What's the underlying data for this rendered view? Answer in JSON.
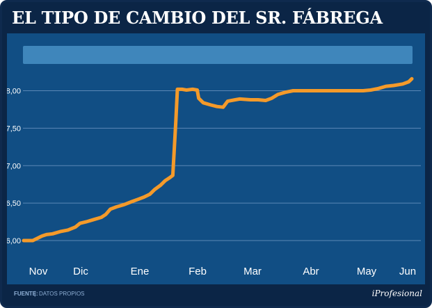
{
  "title": "EL TIPO DE CAMBIO DEL SR. FÁBREGA",
  "footer": {
    "source_label": "FUENTE:",
    "source_value": "DATOS PROPIOS",
    "brand": "iProfesional"
  },
  "colors": {
    "frame": "#0b2546",
    "plot_background": "#114e84",
    "banner": "#3f86bb",
    "line": "#f49a2a",
    "gridline": "#5b88b6"
  },
  "chart_data": {
    "type": "line",
    "title": "",
    "xlabel": "",
    "ylabel": "",
    "ylim": [
      6.0,
      8.2
    ],
    "yticks": [
      "6,00",
      "6,50",
      "7,00",
      "7,50",
      "8,00"
    ],
    "ytick_values": [
      6.0,
      6.5,
      7.0,
      7.5,
      8.0
    ],
    "month_labels": [
      "Nov",
      "Dic",
      "Ene",
      "Feb",
      "Mar",
      "Abr",
      "May",
      "Jun"
    ],
    "grid": true,
    "legend": "none",
    "series": [
      {
        "points": [
          [
            "2009-10-25",
            6.0
          ],
          [
            "2009-10-31",
            6.0
          ],
          [
            "2009-11-03",
            6.03
          ],
          [
            "2009-11-06",
            6.06
          ],
          [
            "2009-11-09",
            6.08
          ],
          [
            "2009-11-13",
            6.09
          ],
          [
            "2009-11-18",
            6.12
          ],
          [
            "2009-11-23",
            6.14
          ],
          [
            "2009-11-28",
            6.18
          ],
          [
            "2009-12-01",
            6.23
          ],
          [
            "2009-12-05",
            6.25
          ],
          [
            "2009-12-10",
            6.28
          ],
          [
            "2009-12-15",
            6.31
          ],
          [
            "2009-12-18",
            6.35
          ],
          [
            "2009-12-21",
            6.42
          ],
          [
            "2009-12-25",
            6.45
          ],
          [
            "2009-12-30",
            6.48
          ],
          [
            "2010-01-04",
            6.52
          ],
          [
            "2010-01-08",
            6.55
          ],
          [
            "2010-01-12",
            6.58
          ],
          [
            "2010-01-16",
            6.62
          ],
          [
            "2010-01-19",
            6.68
          ],
          [
            "2010-01-23",
            6.74
          ],
          [
            "2010-01-26",
            6.8
          ],
          [
            "2010-01-29",
            6.84
          ],
          [
            "2010-01-31",
            6.87
          ],
          [
            "2010-02-02",
            7.6
          ],
          [
            "2010-02-03",
            8.02
          ],
          [
            "2010-02-06",
            8.02
          ],
          [
            "2010-02-09",
            8.01
          ],
          [
            "2010-02-13",
            8.02
          ],
          [
            "2010-02-16",
            8.01
          ],
          [
            "2010-02-17",
            7.9
          ],
          [
            "2010-02-20",
            7.84
          ],
          [
            "2010-02-25",
            7.81
          ],
          [
            "2010-03-01",
            7.79
          ],
          [
            "2010-03-05",
            7.78
          ],
          [
            "2010-03-08",
            7.86
          ],
          [
            "2010-03-13",
            7.88
          ],
          [
            "2010-03-16",
            7.89
          ],
          [
            "2010-03-23",
            7.88
          ],
          [
            "2010-03-28",
            7.88
          ],
          [
            "2010-04-02",
            7.87
          ],
          [
            "2010-04-06",
            7.9
          ],
          [
            "2010-04-10",
            7.95
          ],
          [
            "2010-04-15",
            7.98
          ],
          [
            "2010-04-20",
            8.0
          ],
          [
            "2010-04-25",
            8.0
          ],
          [
            "2010-05-05",
            8.0
          ],
          [
            "2010-05-20",
            8.0
          ],
          [
            "2010-06-05",
            8.0
          ],
          [
            "2010-06-10",
            8.01
          ],
          [
            "2010-06-15",
            8.03
          ],
          [
            "2010-06-20",
            8.06
          ],
          [
            "2010-06-25",
            8.07
          ],
          [
            "2010-07-01",
            8.09
          ],
          [
            "2010-07-05",
            8.12
          ],
          [
            "2010-07-07",
            8.16
          ]
        ]
      }
    ]
  }
}
